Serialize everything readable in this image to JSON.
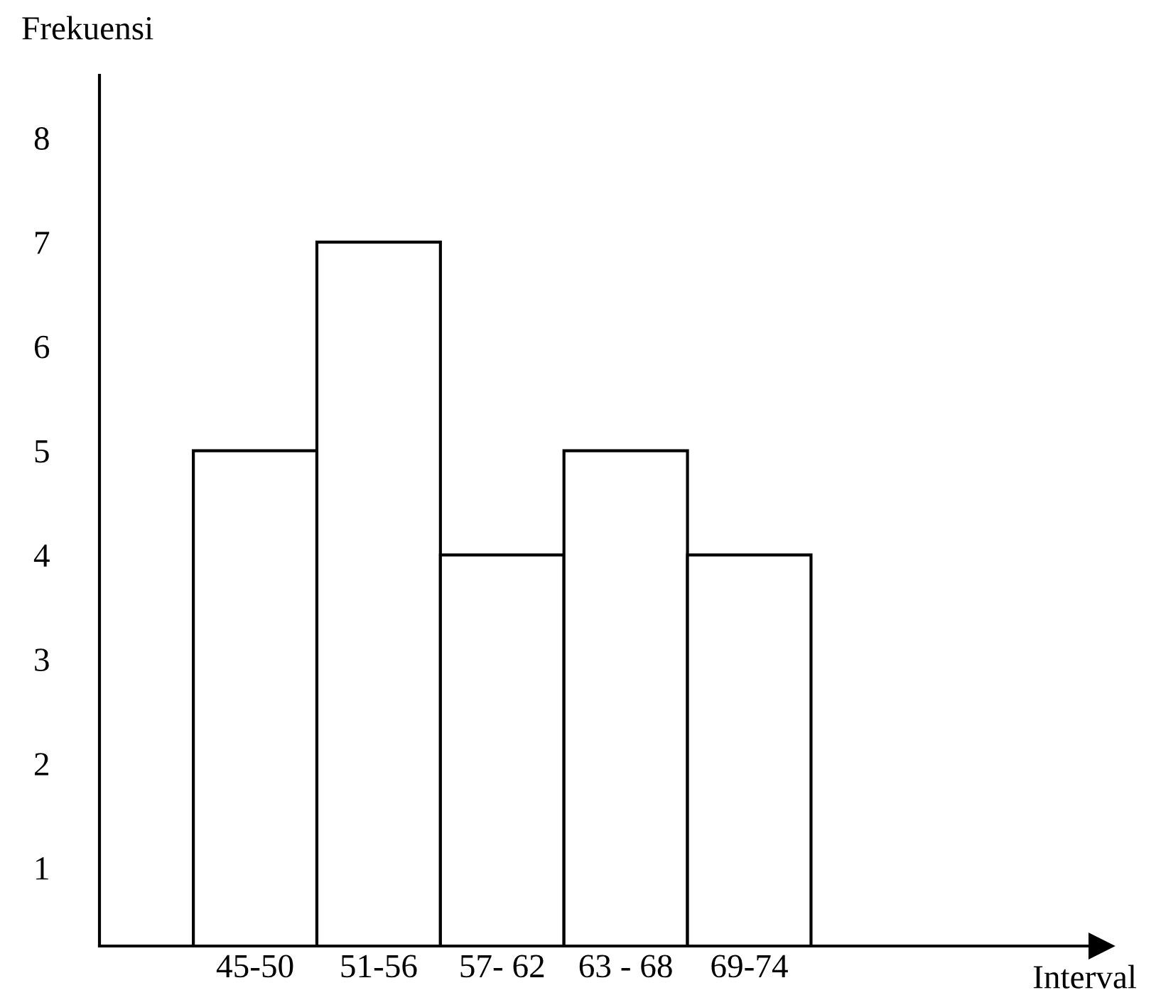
{
  "chart_data": {
    "type": "bar",
    "ylabel": "Frekuensi",
    "annotations": [
      "Interval"
    ],
    "categories": [
      "45-50",
      "51-56",
      "57- 62",
      "63 - 68",
      "69-74"
    ],
    "values": [
      5,
      7,
      4,
      5,
      4
    ],
    "color": "#ffffff",
    "ylim": [
      0.25,
      8.6
    ],
    "yticks": [
      1,
      2,
      3,
      4,
      5,
      6,
      7,
      8
    ],
    "grid": false
  }
}
